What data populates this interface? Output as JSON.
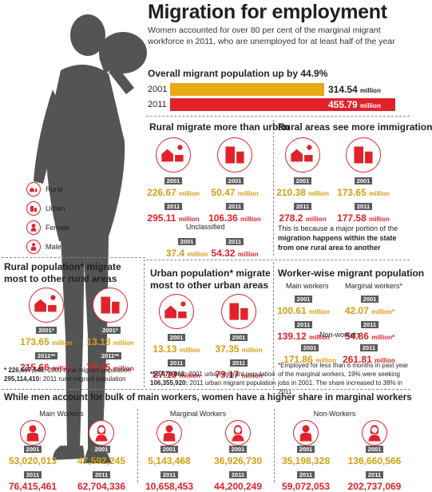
{
  "title": "Migration for employment",
  "subtitle": "Women accounted for over 80 per cent of the marginal migrant workforce in 2011, who are unemployed for at least half of the year",
  "overall": {
    "heading": "Overall migrant population up by 44.9%",
    "rows": [
      {
        "year": "2001",
        "value": "314.54",
        "unit": "million",
        "fraction": 0.69,
        "color": "#e8a917"
      },
      {
        "year": "2011",
        "value": "455.79",
        "unit": "million",
        "fraction": 1.0,
        "color": "#e0232b"
      }
    ]
  },
  "legend": [
    {
      "icon": "rural-icon",
      "label": "Rural"
    },
    {
      "icon": "urban-icon",
      "label": "Urban"
    },
    {
      "icon": "female-icon",
      "label": "Female"
    },
    {
      "icon": "male-icon",
      "label": "Male"
    }
  ],
  "rural_vs_urban": {
    "heading": "Rural migrate more than urban",
    "rural": {
      "y2001": "2001",
      "v2001": "226.67",
      "y2011": "2011",
      "v2011": "295.11",
      "unit": "million"
    },
    "urban": {
      "y2001": "2001",
      "v2001": "50.47",
      "y2011": "2011",
      "v2011": "106.36",
      "unit": "million"
    },
    "unclassified_label": "Unclassified",
    "unclassified": {
      "y2001": "2001",
      "v2001": "37.4",
      "y2011": "2011",
      "v2011": "54.32",
      "unit": "million"
    }
  },
  "immigration": {
    "heading": "Rural areas see more immigration",
    "rural": {
      "y2001": "2001",
      "v2001": "210.38",
      "y2011": "2011",
      "v2011": "278.2",
      "unit": "million"
    },
    "urban": {
      "y2001": "2001",
      "v2001": "173.65",
      "y2011": "2011",
      "v2011": "177.58",
      "unit": "million"
    },
    "note_pre": "This is because a major portion of the ",
    "note_bold": "migration happens within the state from one rural area to another"
  },
  "rural_pop": {
    "heading_line1": "Rural population* migrate",
    "heading_line2": "most to other rural areas",
    "rural": {
      "y2001": "2001*",
      "v2001": "173.65",
      "y2011": "2011**",
      "v2011": "215.66",
      "unit": "million"
    },
    "urban": {
      "y2001": "2001*",
      "v2001": "13.13",
      "y2011": "2011**",
      "v2011": "79.45",
      "unit": "million"
    },
    "foot1_bold": "* 226,667,548:",
    "foot1": " 2001 rural migrant population",
    "foot2_bold": "295,114,410:",
    "foot2": " 2011 rural migrant population"
  },
  "urban_pop": {
    "heading_line1": "Urban population* migrate",
    "heading_line2": "most to other urban areas",
    "rural": {
      "y2001": "2001",
      "v2001": "13.13",
      "y2011": "2011",
      "v2011": "27.19",
      "unit": "million"
    },
    "urban": {
      "y2001": "2001",
      "v2001": "37.35",
      "y2011": "2011",
      "v2011": "79.17",
      "unit": "million"
    },
    "foot1_bold": "*50,474,068:",
    "foot1": " 2001 urban migrant population",
    "foot2_bold": "106,355,920:",
    "foot2": " 2011 urban migrant population"
  },
  "worker_wise": {
    "heading": "Worker-wise migrant population",
    "main_label": "Main workers",
    "main": {
      "y2001": "2001",
      "v2001": "100.61",
      "y2011": "2011",
      "v2011": "139.12",
      "unit": "million"
    },
    "marginal_label": "Marginal workers*",
    "marginal": {
      "y2001": "2001",
      "v2001": "42.07",
      "y2011": "2011",
      "v2011": "54.86",
      "unit": "million",
      "mark": "*"
    },
    "non_label": "Non-workers",
    "non": {
      "y2001": "2001",
      "v2001": "171.86",
      "y2011": "2011",
      "v2011": "261.81",
      "unit": "million"
    },
    "footnote": "*Employed for less than 6 months in past year of the marginal workers, 19% were seeking jobs in 2001. The share increased to 38% in 2011"
  },
  "gender": {
    "heading": "While men account for bulk of main workers, women have a higher share in marginal workers",
    "groups": [
      {
        "label": "Main Workers",
        "male": {
          "y2001": "2001",
          "v2001": "53,020,013",
          "y2011": "2011",
          "v2011": "76,415,461"
        },
        "female": {
          "y2001": "2001",
          "v2001": "47,592,245",
          "y2011": "2011",
          "v2011": "62,704,336"
        }
      },
      {
        "label": "Marginal Workers",
        "male": {
          "y2001": "2001",
          "v2001": "5,143,468",
          "y2011": "2011",
          "v2011": "10,658,453"
        },
        "female": {
          "y2001": "2001",
          "v2001": "36,926,730",
          "y2011": "2011",
          "v2011": "44,200,249"
        }
      },
      {
        "label": "Non-Workers",
        "male": {
          "y2001": "2001",
          "v2001": "35,198,328",
          "y2011": "2011",
          "v2011": "59,072,053"
        },
        "female": {
          "y2001": "2001",
          "v2001": "136,660,566",
          "y2011": "2011",
          "v2011": "202,737,069"
        }
      }
    ]
  },
  "colors": {
    "gold": "#d49e14",
    "red": "#e0232b",
    "silhouette": "#545454"
  }
}
